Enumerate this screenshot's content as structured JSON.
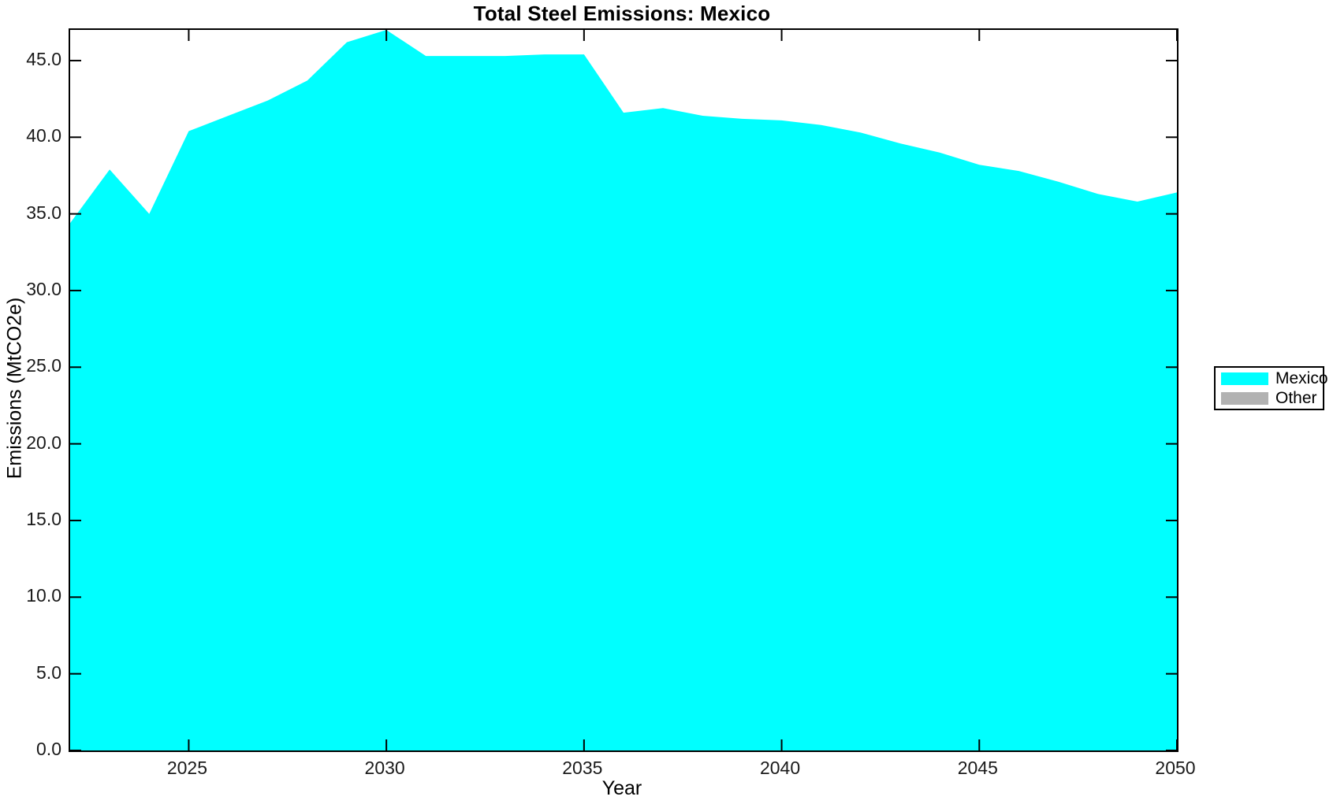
{
  "figure": {
    "title": "Total Steel Emissions: Mexico",
    "xlabel": "Year",
    "ylabel": "Emissions (MtCO2e)"
  },
  "legend": {
    "entries": [
      {
        "label": "Mexico",
        "color": "#00FFFF"
      },
      {
        "label": "Other",
        "color": "#B2B2B2"
      }
    ]
  },
  "chart_data": {
    "type": "area",
    "title": "Total Steel Emissions: Mexico",
    "xlabel": "Year",
    "ylabel": "Emissions (MtCO2e)",
    "xlim": [
      2022,
      2050
    ],
    "ylim": [
      0,
      47
    ],
    "grid": false,
    "legend_position": "outside-right",
    "x_ticks": [
      {
        "v": 2025,
        "label": "2025"
      },
      {
        "v": 2030,
        "label": "2030"
      },
      {
        "v": 2035,
        "label": "2035"
      },
      {
        "v": 2040,
        "label": "2040"
      },
      {
        "v": 2045,
        "label": "2045"
      },
      {
        "v": 2050,
        "label": "2050"
      }
    ],
    "y_ticks": [
      {
        "v": 0,
        "label": "0.0"
      },
      {
        "v": 5,
        "label": "5.0"
      },
      {
        "v": 10,
        "label": "10.0"
      },
      {
        "v": 15,
        "label": "15.0"
      },
      {
        "v": 20,
        "label": "20.0"
      },
      {
        "v": 25,
        "label": "25.0"
      },
      {
        "v": 30,
        "label": "30.0"
      },
      {
        "v": 35,
        "label": "35.0"
      },
      {
        "v": 40,
        "label": "40.0"
      },
      {
        "v": 45,
        "label": "45.0"
      }
    ],
    "x": [
      2022,
      2023,
      2024,
      2025,
      2026,
      2027,
      2028,
      2029,
      2030,
      2031,
      2032,
      2033,
      2034,
      2035,
      2036,
      2037,
      2038,
      2039,
      2040,
      2041,
      2042,
      2043,
      2044,
      2045,
      2046,
      2047,
      2048,
      2049,
      2050
    ],
    "series": [
      {
        "name": "Mexico",
        "color": "#00FFFF",
        "values": [
          34.4,
          37.9,
          35.0,
          40.4,
          41.4,
          42.4,
          43.7,
          46.2,
          47.0,
          45.3,
          45.3,
          45.3,
          45.4,
          45.4,
          41.6,
          41.9,
          41.4,
          41.2,
          41.1,
          40.8,
          40.3,
          39.6,
          39.0,
          38.2,
          37.8,
          37.1,
          36.3,
          35.8,
          36.4
        ]
      }
    ]
  }
}
